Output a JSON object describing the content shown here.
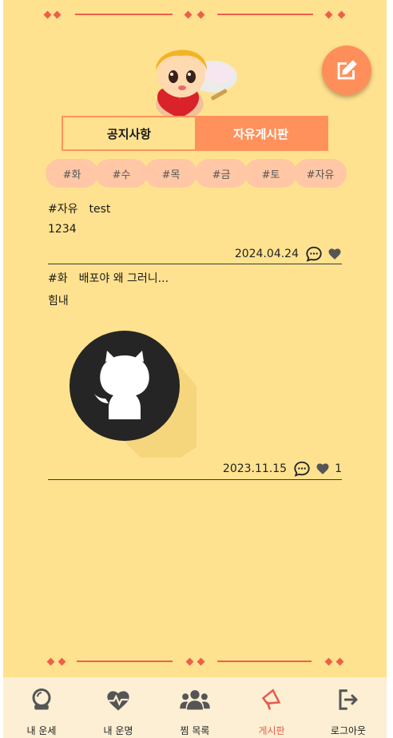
{
  "colors": {
    "background": "#ffe28f",
    "accent": "#ff925c",
    "chip": "#ffc7a6",
    "deco": "#ee5f4a",
    "nav_bg": "#fcefd4",
    "active_nav": "#e85a4a"
  },
  "tabs": [
    {
      "label": "공지사항",
      "active": false
    },
    {
      "label": "자유게시판",
      "active": true
    }
  ],
  "filters": [
    "#화",
    "#수",
    "#목",
    "#금",
    "#토",
    "#자유"
  ],
  "posts": [
    {
      "tag": "#자유",
      "title": "test",
      "body": "1234",
      "date": "2024.04.24",
      "likes": "",
      "has_image": false
    },
    {
      "tag": "#화",
      "title": "배포야 왜 그러니...",
      "body": "힘내",
      "date": "2023.11.15",
      "likes": "1",
      "has_image": true,
      "image_icon": "github-icon"
    }
  ],
  "nav": [
    {
      "label": "내 운세",
      "icon": "crystal-ball-icon",
      "active": false
    },
    {
      "label": "내 운명",
      "icon": "heart-pulse-icon",
      "active": false
    },
    {
      "label": "찜 목록",
      "icon": "users-icon",
      "active": false
    },
    {
      "label": "게시판",
      "icon": "megaphone-icon",
      "active": true
    },
    {
      "label": "로그아웃",
      "icon": "logout-icon",
      "active": false
    }
  ]
}
